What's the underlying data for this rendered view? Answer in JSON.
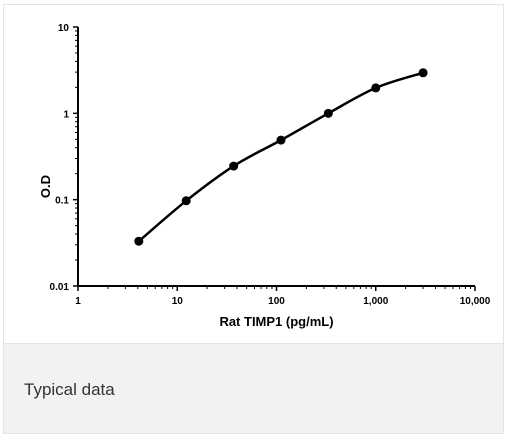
{
  "chart_data": {
    "type": "line",
    "xscale": "log",
    "yscale": "log",
    "xlim": [
      1,
      10000
    ],
    "ylim": [
      0.01,
      10
    ],
    "xlabel": "Rat TIMP1 (pg/mL)",
    "ylabel": "O.D",
    "xticks": [
      "1",
      "10",
      "100",
      "1,000",
      "10,000"
    ],
    "yticks": [
      "0.01",
      "0.1",
      "1",
      "10"
    ],
    "grid": false,
    "legend": "none",
    "series": [
      {
        "x": [
          4.1,
          12.3,
          37,
          111,
          333,
          1000,
          3000
        ],
        "y": [
          0.033,
          0.097,
          0.245,
          0.49,
          1.0,
          1.97,
          2.95
        ],
        "color": "#000000"
      }
    ]
  },
  "caption": "Typical data"
}
